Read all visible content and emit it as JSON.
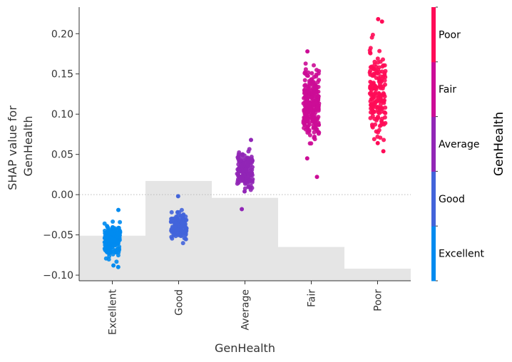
{
  "chart_data": {
    "type": "scatter",
    "xlabel": "GenHealth",
    "ylabel_lines": [
      "SHAP value for",
      "GenHealth"
    ],
    "categories": [
      "Excellent",
      "Good",
      "Average",
      "Fair",
      "Poor"
    ],
    "ylim": [
      -0.107,
      0.233
    ],
    "yticks": [
      -0.1,
      -0.05,
      0.0,
      0.05,
      0.1,
      0.15,
      0.2
    ],
    "ytick_labels": [
      "−0.10",
      "−0.05",
      "0.00",
      "0.05",
      "0.10",
      "0.15",
      "0.20"
    ],
    "zero_line": true,
    "background_histogram": {
      "baseline": -0.107,
      "heights": [
        -0.051,
        0.017,
        -0.004,
        -0.065,
        -0.092
      ],
      "color": "#e5e5e5"
    },
    "series": [
      {
        "category": "Excellent",
        "color": "#008bf0",
        "dense_range": [
          -0.087,
          -0.027
        ],
        "outliers": [
          -0.019,
          -0.09,
          -0.088
        ],
        "n_points": 180
      },
      {
        "category": "Good",
        "color": "#4264da",
        "dense_range": [
          -0.061,
          -0.015
        ],
        "outliers": [
          -0.002
        ],
        "n_points": 140
      },
      {
        "category": "Average",
        "color": "#9126b6",
        "dense_range": [
          -0.003,
          0.063
        ],
        "outliers": [
          -0.018,
          0.068,
          0.004
        ],
        "n_points": 160
      },
      {
        "category": "Fair",
        "color": "#cc0c96",
        "dense_range": [
          0.048,
          0.172
        ],
        "outliers": [
          0.022,
          0.178,
          0.045
        ],
        "n_points": 260
      },
      {
        "category": "Poor",
        "color": "#ff0b57",
        "dense_range": [
          0.056,
          0.2
        ],
        "outliers": [
          0.218,
          0.215,
          0.064,
          0.054
        ],
        "n_points": 170
      }
    ],
    "colorbar": {
      "title": "GenHealth",
      "labels": [
        "Excellent",
        "Good",
        "Average",
        "Fair",
        "Poor"
      ],
      "colors": [
        "#008bf0",
        "#4264da",
        "#9126b6",
        "#cc0c96",
        "#ff0b57"
      ]
    }
  }
}
